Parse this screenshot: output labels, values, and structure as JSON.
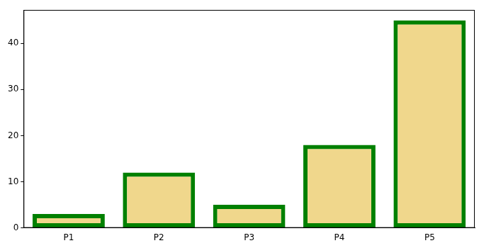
{
  "chart_data": {
    "type": "bar",
    "categories": [
      "P1",
      "P2",
      "P3",
      "P4",
      "P5"
    ],
    "values": [
      3,
      12,
      5,
      18,
      45
    ],
    "color": "#f0d78c",
    "ylim": [
      0,
      47.25
    ],
    "yticks": [
      0,
      10,
      20,
      30,
      40
    ],
    "grid": false
  }
}
